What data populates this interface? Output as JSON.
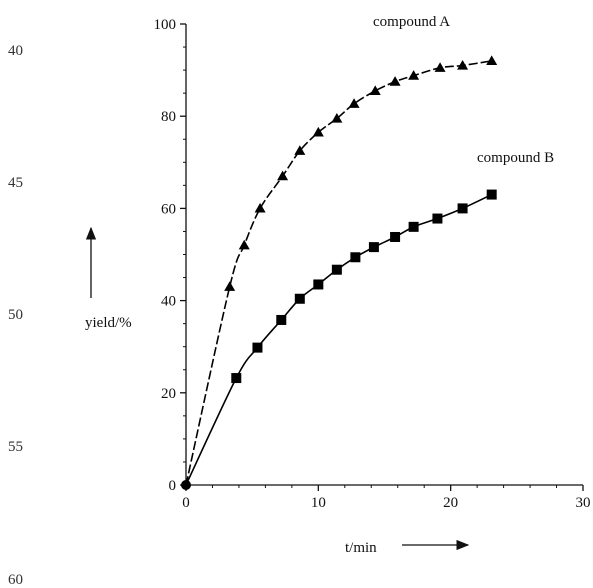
{
  "margin_numbers": [
    "40",
    "45",
    "50",
    "55",
    "60"
  ],
  "chart_data": {
    "type": "line",
    "xlabel": "t/min",
    "ylabel": "yield/%",
    "xlim": [
      0,
      30
    ],
    "ylim": [
      0,
      100
    ],
    "x_ticks": [
      "0",
      "10",
      "20",
      "30"
    ],
    "y_ticks": [
      "0",
      "20",
      "40",
      "60",
      "80",
      "100"
    ],
    "grid": false,
    "series": [
      {
        "name": "compound A",
        "marker": "triangle",
        "line_style": "dashed",
        "color": "#000000",
        "x": [
          0,
          3.3,
          4.4,
          5.6,
          7.3,
          8.6,
          10.0,
          11.4,
          12.7,
          14.3,
          15.8,
          17.2,
          19.2,
          20.9,
          23.1
        ],
        "y": [
          0,
          43,
          52,
          60,
          67,
          72.5,
          76.5,
          79.5,
          82.7,
          85.5,
          87.5,
          88.8,
          90.5,
          91.0,
          92.0
        ]
      },
      {
        "name": "compound B",
        "marker": "square",
        "line_style": "solid",
        "color": "#000000",
        "x": [
          0,
          3.8,
          5.4,
          7.2,
          8.6,
          10.0,
          11.4,
          12.8,
          14.2,
          15.8,
          17.2,
          19.0,
          20.9,
          23.1
        ],
        "y": [
          0,
          23.2,
          29.8,
          35.8,
          40.4,
          43.5,
          46.7,
          49.4,
          51.6,
          53.8,
          56.0,
          57.8,
          60.0,
          63.0
        ]
      }
    ]
  }
}
